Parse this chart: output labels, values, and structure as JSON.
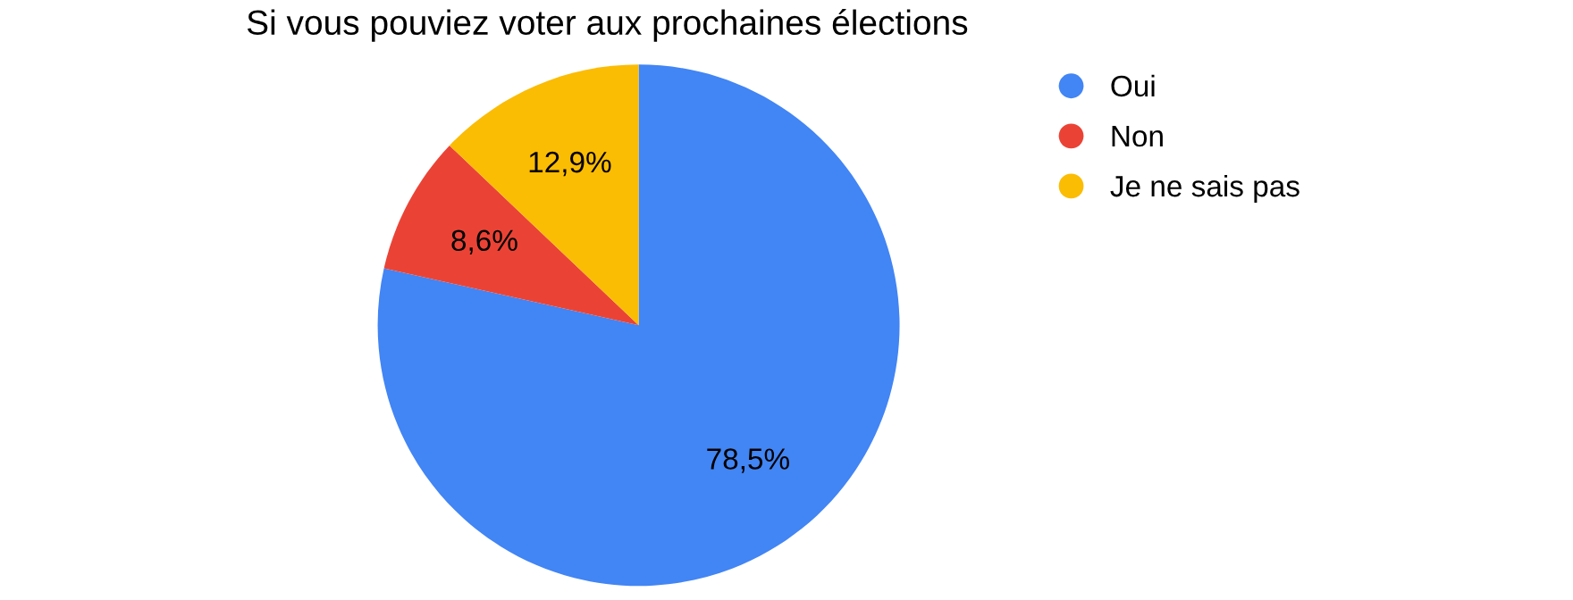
{
  "chart_data": {
    "type": "pie",
    "title": "Si vous pouviez voter aux prochaines élections",
    "categories": [
      "Oui",
      "Non",
      "Je ne sais pas"
    ],
    "values": [
      78.5,
      8.6,
      12.9
    ],
    "colors": [
      "#4285f4",
      "#ea4335",
      "#fbbc04"
    ],
    "value_labels": [
      "78,5%",
      "8,6%",
      "12,9%"
    ],
    "legend": "right"
  }
}
